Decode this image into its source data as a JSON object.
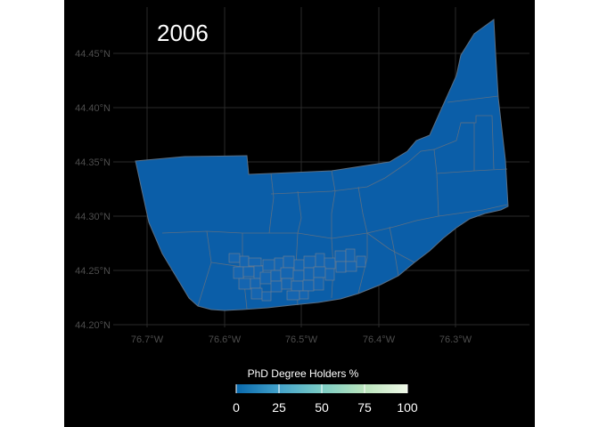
{
  "map": {
    "title": "2006",
    "y_axis_labels": [
      "44.45°N",
      "44.40°N",
      "44.35°N",
      "44.30°N",
      "44.25°N",
      "44.20°N"
    ],
    "x_axis_labels": [
      "76.7°W",
      "76.6°W",
      "76.5°W",
      "76.4°W",
      "76.3°W"
    ],
    "region_fill": "#0b5ea8",
    "border_color": "#5a6f85",
    "grid_color": "#2a2a2a",
    "background": "#000000"
  },
  "legend": {
    "title": "PhD Degree Holders %",
    "ticks": [
      "0",
      "25",
      "50",
      "75",
      "100"
    ],
    "gradient_colors": [
      "#0868ac",
      "#43a2ca",
      "#7bccc4",
      "#bae4bc",
      "#f0f9e8"
    ]
  }
}
